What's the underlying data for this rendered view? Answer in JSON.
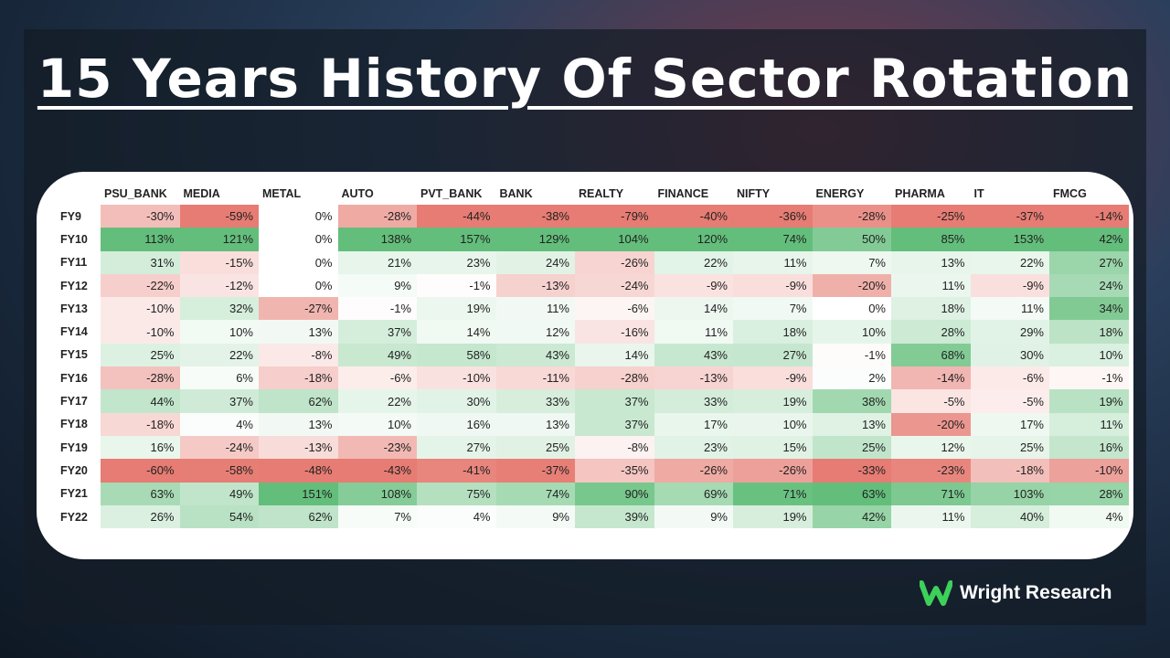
{
  "header": {
    "title": "15 Years History Of Sector Rotation"
  },
  "table": {
    "columns": [
      "PSU_BANK",
      "MEDIA",
      "METAL",
      "AUTO",
      "PVT_BANK",
      "BANK",
      "REALTY",
      "FINANCE",
      "NIFTY",
      "ENERGY",
      "PHARMA",
      "IT",
      "FMCG"
    ],
    "rows": [
      [
        "FY9",
        "-30%",
        "-59%",
        "0%",
        "-28%",
        "-44%",
        "-38%",
        "-79%",
        "-40%",
        "-36%",
        "-28%",
        "-25%",
        "-37%",
        "-14%"
      ],
      [
        "FY10",
        "113%",
        "121%",
        "0%",
        "138%",
        "157%",
        "129%",
        "104%",
        "120%",
        "74%",
        "50%",
        "85%",
        "153%",
        "42%"
      ],
      [
        "FY11",
        "31%",
        "-15%",
        "0%",
        "21%",
        "23%",
        "24%",
        "-26%",
        "22%",
        "11%",
        "7%",
        "13%",
        "22%",
        "27%"
      ],
      [
        "FY12",
        "-22%",
        "-12%",
        "0%",
        "9%",
        "-1%",
        "-13%",
        "-24%",
        "-9%",
        "-9%",
        "-20%",
        "11%",
        "-9%",
        "24%"
      ],
      [
        "FY13",
        "-10%",
        "32%",
        "-27%",
        "-1%",
        "19%",
        "11%",
        "-6%",
        "14%",
        "7%",
        "0%",
        "18%",
        "11%",
        "34%"
      ],
      [
        "FY14",
        "-10%",
        "10%",
        "13%",
        "37%",
        "14%",
        "12%",
        "-16%",
        "11%",
        "18%",
        "10%",
        "28%",
        "29%",
        "18%"
      ],
      [
        "FY15",
        "25%",
        "22%",
        "-8%",
        "49%",
        "58%",
        "43%",
        "14%",
        "43%",
        "27%",
        "-1%",
        "68%",
        "30%",
        "10%"
      ],
      [
        "FY16",
        "-28%",
        "6%",
        "-18%",
        "-6%",
        "-10%",
        "-11%",
        "-28%",
        "-13%",
        "-9%",
        "2%",
        "-14%",
        "-6%",
        "-1%"
      ],
      [
        "FY17",
        "44%",
        "37%",
        "62%",
        "22%",
        "30%",
        "33%",
        "37%",
        "33%",
        "19%",
        "38%",
        "-5%",
        "-5%",
        "19%"
      ],
      [
        "FY18",
        "-18%",
        "4%",
        "13%",
        "10%",
        "16%",
        "13%",
        "37%",
        "17%",
        "10%",
        "13%",
        "-20%",
        "17%",
        "11%"
      ],
      [
        "FY19",
        "16%",
        "-24%",
        "-13%",
        "-23%",
        "27%",
        "25%",
        "-8%",
        "23%",
        "15%",
        "25%",
        "12%",
        "25%",
        "16%"
      ],
      [
        "FY20",
        "-60%",
        "-58%",
        "-48%",
        "-43%",
        "-41%",
        "-37%",
        "-35%",
        "-26%",
        "-26%",
        "-33%",
        "-23%",
        "-18%",
        "-10%"
      ],
      [
        "FY21",
        "63%",
        "49%",
        "151%",
        "108%",
        "75%",
        "74%",
        "90%",
        "69%",
        "71%",
        "63%",
        "71%",
        "103%",
        "28%"
      ],
      [
        "FY22",
        "26%",
        "54%",
        "62%",
        "7%",
        "4%",
        "9%",
        "39%",
        "9%",
        "19%",
        "42%",
        "11%",
        "40%",
        "4%"
      ]
    ]
  },
  "footer": {
    "brand": "Wright Research"
  }
}
